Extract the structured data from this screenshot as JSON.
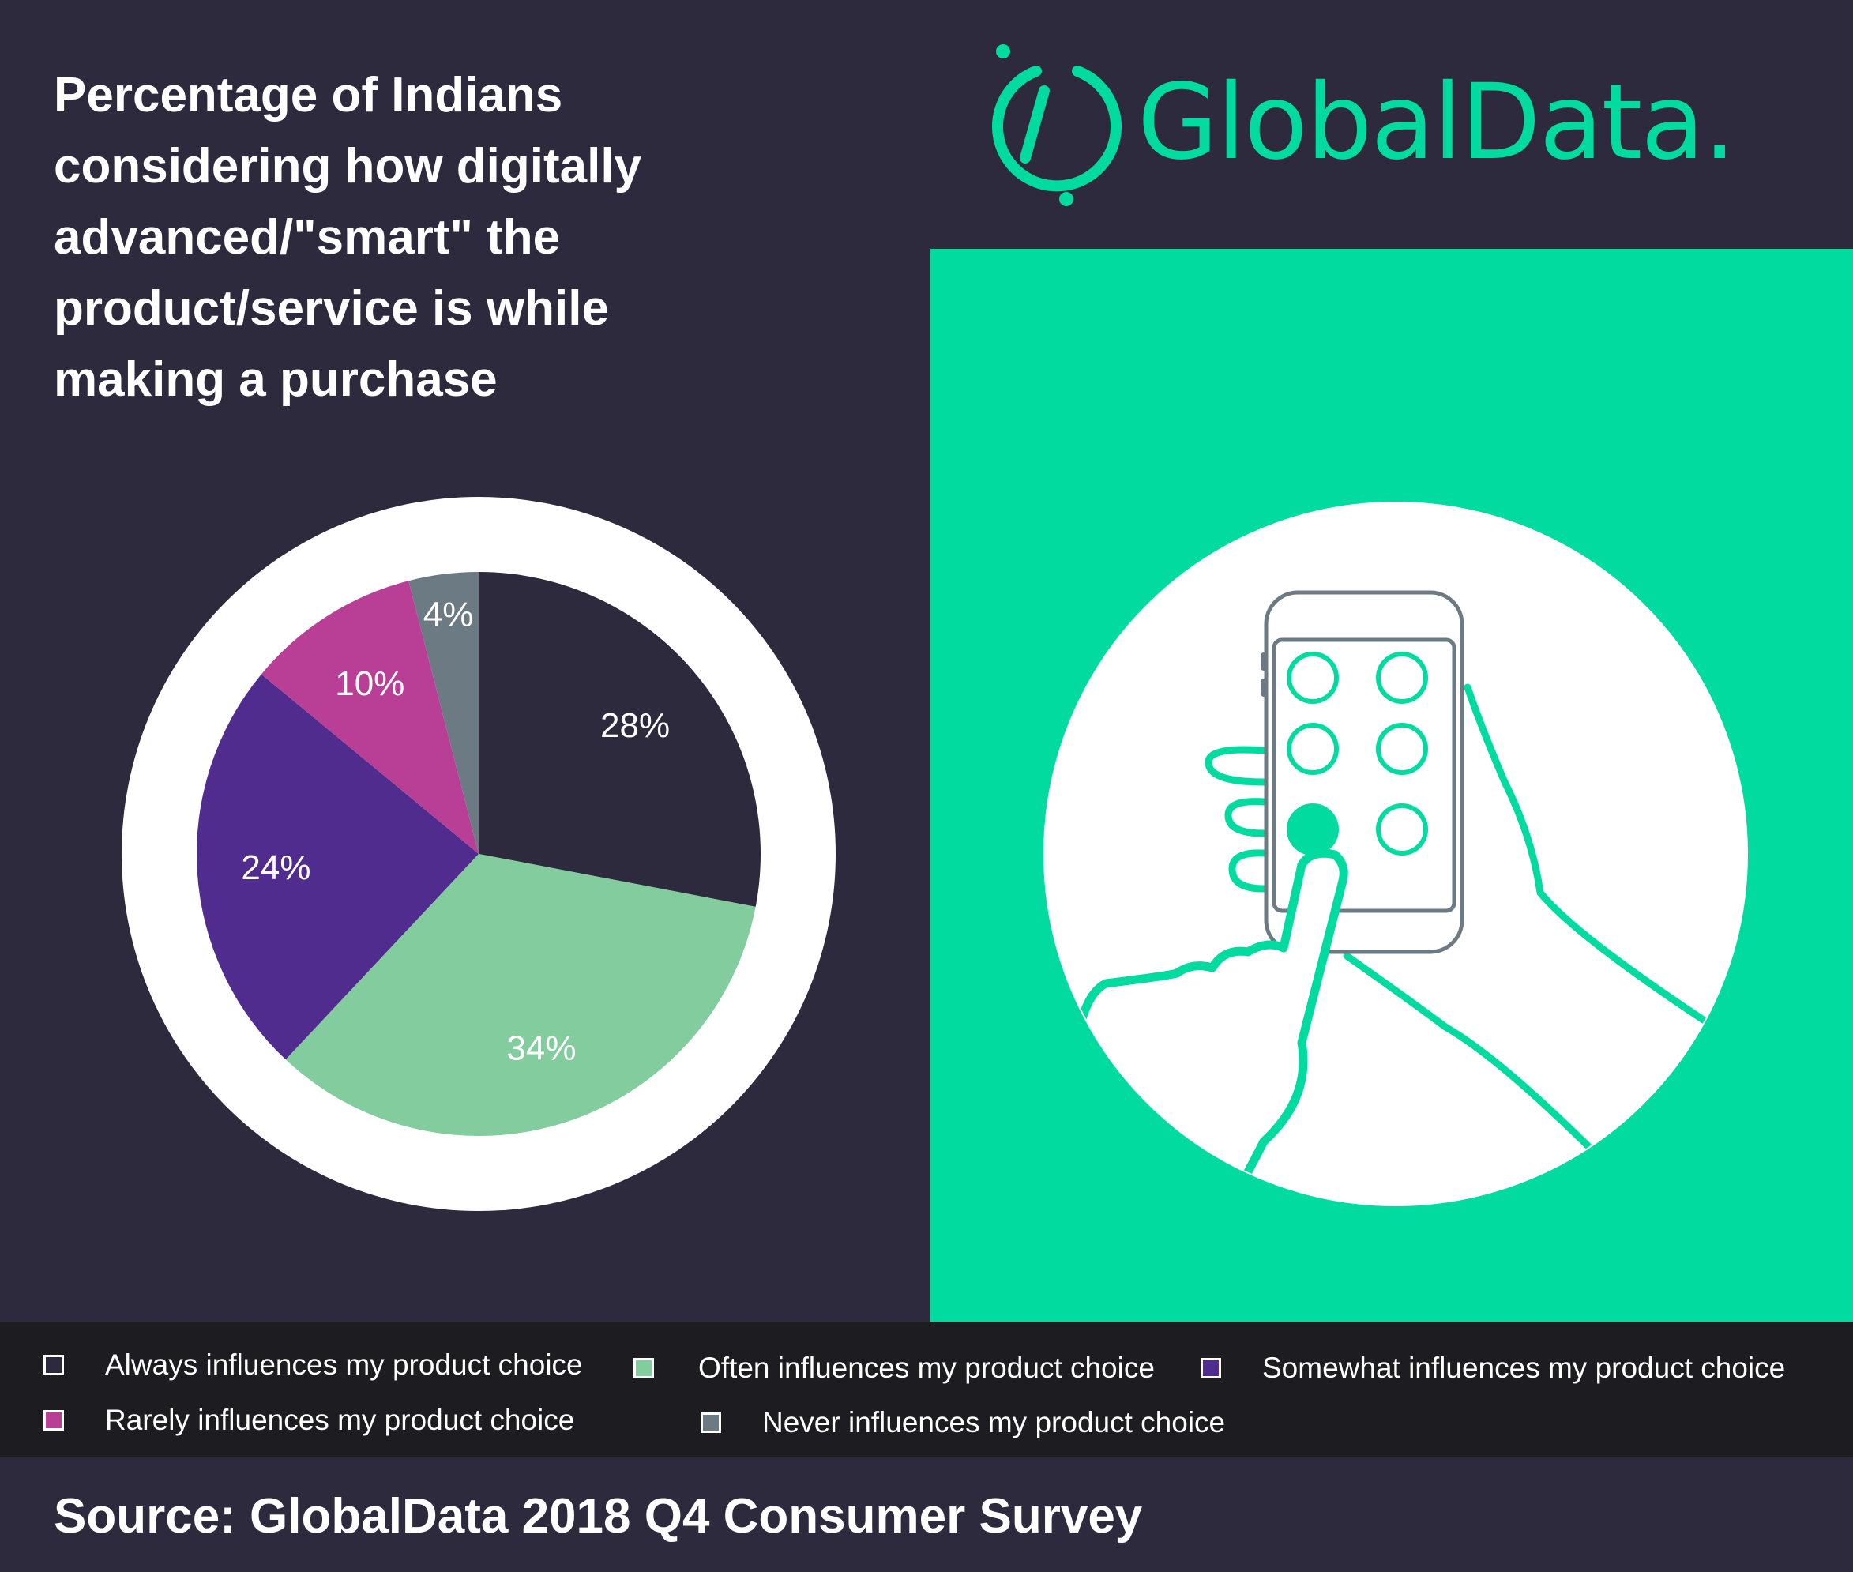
{
  "header": {
    "title": "Percentage of Indians\nconsidering how digitally\nadvanced/\"smart\" the\nproduct/service is while\nmaking a purchase",
    "logo_text": "GlobalData."
  },
  "colors": {
    "background": "#2e2a3d",
    "brand_green": "#02dba0",
    "legend_bar": "#1d1d21",
    "ring": "#ffffff"
  },
  "chart_data": {
    "type": "pie",
    "title": "",
    "categories": [
      "Always influences my product choice",
      "Often influences my product choice",
      "Somewhat influences my product choice",
      "Rarely influences my product choice",
      "Never influences my product choice"
    ],
    "values": [
      28,
      34,
      24,
      10,
      4
    ],
    "labels": [
      "28%",
      "34%",
      "24%",
      "10%",
      "4%"
    ],
    "colors": [
      "#2e2a3d",
      "#82cc9e",
      "#502c8e",
      "#b93e96",
      "#6c7a84"
    ],
    "legend_position": "bottom"
  },
  "illustration": {
    "icon": "hand-tapping-smartphone-icon"
  },
  "footer": {
    "source": "Source: GlobalData 2018 Q4 Consumer Survey"
  }
}
